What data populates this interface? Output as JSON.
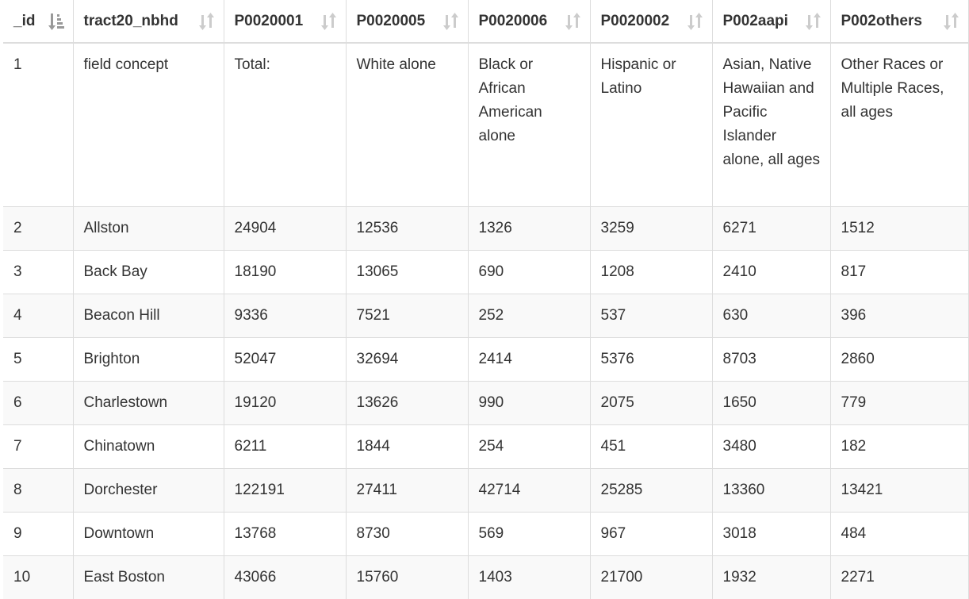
{
  "table": {
    "columns": [
      {
        "label": "_id",
        "sort": "sorted-desc-icon"
      },
      {
        "label": "tract20_nbhd",
        "sort": "sort-icon"
      },
      {
        "label": "P0020001",
        "sort": "sort-icon"
      },
      {
        "label": "P0020005",
        "sort": "sort-icon"
      },
      {
        "label": "P0020006",
        "sort": "sort-icon"
      },
      {
        "label": "P0020002",
        "sort": "sort-icon"
      },
      {
        "label": "P002aapi",
        "sort": "sort-icon"
      },
      {
        "label": "P002others",
        "sort": "sort-icon"
      }
    ],
    "rows": [
      [
        "1",
        "field concept",
        "Total:",
        "White alone",
        "Black or African American alone",
        "Hispanic or Latino",
        "Asian, Native Hawaiian and Pacific Islander alone, all ages",
        "Other Races or Multiple Races, all ages"
      ],
      [
        "2",
        "Allston",
        "24904",
        "12536",
        "1326",
        "3259",
        "6271",
        "1512"
      ],
      [
        "3",
        "Back Bay",
        "18190",
        "13065",
        "690",
        "1208",
        "2410",
        "817"
      ],
      [
        "4",
        "Beacon Hill",
        "9336",
        "7521",
        "252",
        "537",
        "630",
        "396"
      ],
      [
        "5",
        "Brighton",
        "52047",
        "32694",
        "2414",
        "5376",
        "8703",
        "2860"
      ],
      [
        "6",
        "Charlestown",
        "19120",
        "13626",
        "990",
        "2075",
        "1650",
        "779"
      ],
      [
        "7",
        "Chinatown",
        "6211",
        "1844",
        "254",
        "451",
        "3480",
        "182"
      ],
      [
        "8",
        "Dorchester",
        "122191",
        "27411",
        "42714",
        "25285",
        "13360",
        "13421"
      ],
      [
        "9",
        "Downtown",
        "13768",
        "8730",
        "569",
        "967",
        "3018",
        "484"
      ],
      [
        "10",
        "East Boston",
        "43066",
        "15760",
        "1403",
        "21700",
        "1932",
        "2271"
      ]
    ]
  },
  "colors": {
    "border": "#dddddd",
    "stripe": "#f9f9f9",
    "text": "#333333",
    "sort_icon_inactive": "#cccccc",
    "sort_icon_active": "#999999"
  }
}
